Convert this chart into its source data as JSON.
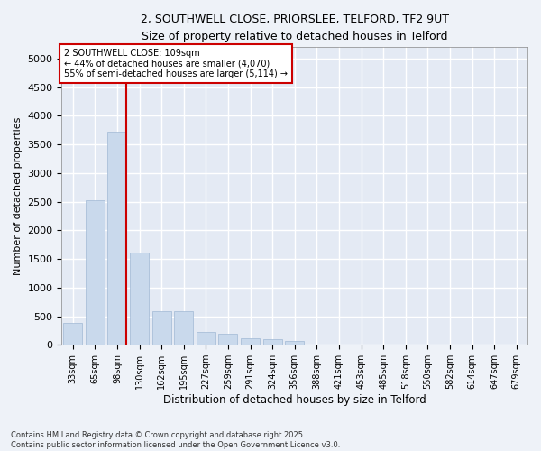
{
  "title_line1": "2, SOUTHWELL CLOSE, PRIORSLEE, TELFORD, TF2 9UT",
  "title_line2": "Size of property relative to detached houses in Telford",
  "categories": [
    "33sqm",
    "65sqm",
    "98sqm",
    "130sqm",
    "162sqm",
    "195sqm",
    "227sqm",
    "259sqm",
    "291sqm",
    "324sqm",
    "356sqm",
    "388sqm",
    "421sqm",
    "453sqm",
    "485sqm",
    "518sqm",
    "550sqm",
    "582sqm",
    "614sqm",
    "647sqm",
    "679sqm"
  ],
  "values": [
    380,
    2530,
    3730,
    1610,
    590,
    590,
    220,
    200,
    110,
    100,
    60,
    0,
    0,
    0,
    0,
    0,
    0,
    0,
    0,
    0,
    0
  ],
  "bar_color": "#c9d9ec",
  "bar_edge_color": "#a0b8d4",
  "vline_color": "#cc0000",
  "vline_x_index": 2,
  "ylim": [
    0,
    5200
  ],
  "yticks": [
    0,
    500,
    1000,
    1500,
    2000,
    2500,
    3000,
    3500,
    4000,
    4500,
    5000
  ],
  "ylabel": "Number of detached properties",
  "xlabel": "Distribution of detached houses by size in Telford",
  "annotation_title": "2 SOUTHWELL CLOSE: 109sqm",
  "annotation_line1": "← 44% of detached houses are smaller (4,070)",
  "annotation_line2": "55% of semi-detached houses are larger (5,114) →",
  "annotation_box_color": "#ffffff",
  "annotation_box_edge": "#cc0000",
  "footer_line1": "Contains HM Land Registry data © Crown copyright and database right 2025.",
  "footer_line2": "Contains public sector information licensed under the Open Government Licence v3.0.",
  "bg_color": "#eef2f8",
  "plot_bg_color": "#e4eaf4",
  "grid_color": "#ffffff"
}
